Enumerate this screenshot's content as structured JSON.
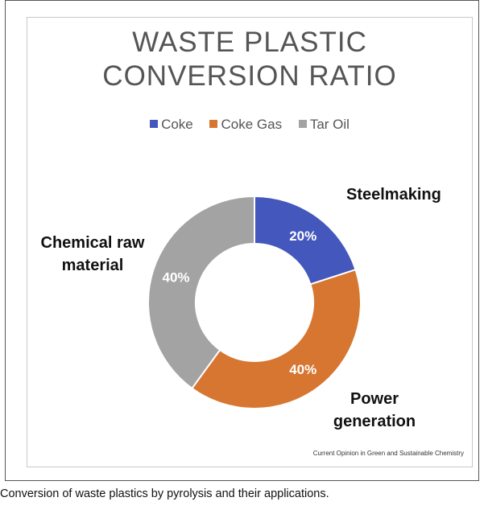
{
  "chart_data": {
    "type": "pie",
    "variant": "donut",
    "title_lines": [
      "WASTE PLASTIC",
      "CONVERSION RATIO"
    ],
    "legend_position": "top",
    "slices": [
      {
        "name": "Coke",
        "value": 20,
        "value_label": "20%",
        "category_label": "Steelmaking",
        "color": "#4457bc"
      },
      {
        "name": "Coke Gas",
        "value": 40,
        "value_label": "40%",
        "category_label": "Power generation",
        "color": "#d77630"
      },
      {
        "name": "Tar Oil",
        "value": 40,
        "value_label": "40%",
        "category_label": "Chemical raw material",
        "color": "#a3a3a3"
      }
    ]
  },
  "labels": {
    "steelmaking": "Steelmaking",
    "power_line1": "Power",
    "power_line2": "generation",
    "chemical_line1": "Chemical raw",
    "chemical_line2": "material"
  },
  "source_credit": "Current Opinion in Green and Sustainable Chemistry",
  "caption": "Conversion of waste plastics by pyrolysis and their applications."
}
